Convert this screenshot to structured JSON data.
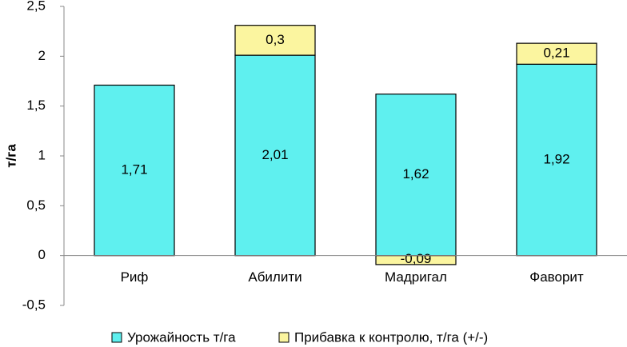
{
  "chart_data": {
    "type": "bar",
    "stacked": true,
    "categories": [
      "Риф",
      "Абилити",
      "Мадригал",
      "Фаворит"
    ],
    "series": [
      {
        "name": "Урожайность т/га",
        "color": "#5ff0ef",
        "values": [
          1.71,
          2.01,
          1.62,
          1.92
        ],
        "labels": [
          "1,71",
          "2,01",
          "1,62",
          "1,92"
        ]
      },
      {
        "name": "Прибавка к контролю, т/га (+/-)",
        "color": "#fbf59f",
        "values": [
          null,
          0.3,
          -0.09,
          0.21
        ],
        "labels": [
          "",
          "0,3",
          "-0,09",
          "0,21"
        ]
      }
    ],
    "ylabel": "т/га",
    "ylim": [
      -0.5,
      2.5
    ],
    "yticks": [
      {
        "value": -0.5,
        "label": "-0,5"
      },
      {
        "value": 0,
        "label": "0"
      },
      {
        "value": 0.5,
        "label": "0,5"
      },
      {
        "value": 1,
        "label": "1"
      },
      {
        "value": 1.5,
        "label": "1,5"
      },
      {
        "value": 2,
        "label": "2"
      },
      {
        "value": 2.5,
        "label": "2,5"
      }
    ],
    "grid": false,
    "legend_position": "bottom"
  }
}
